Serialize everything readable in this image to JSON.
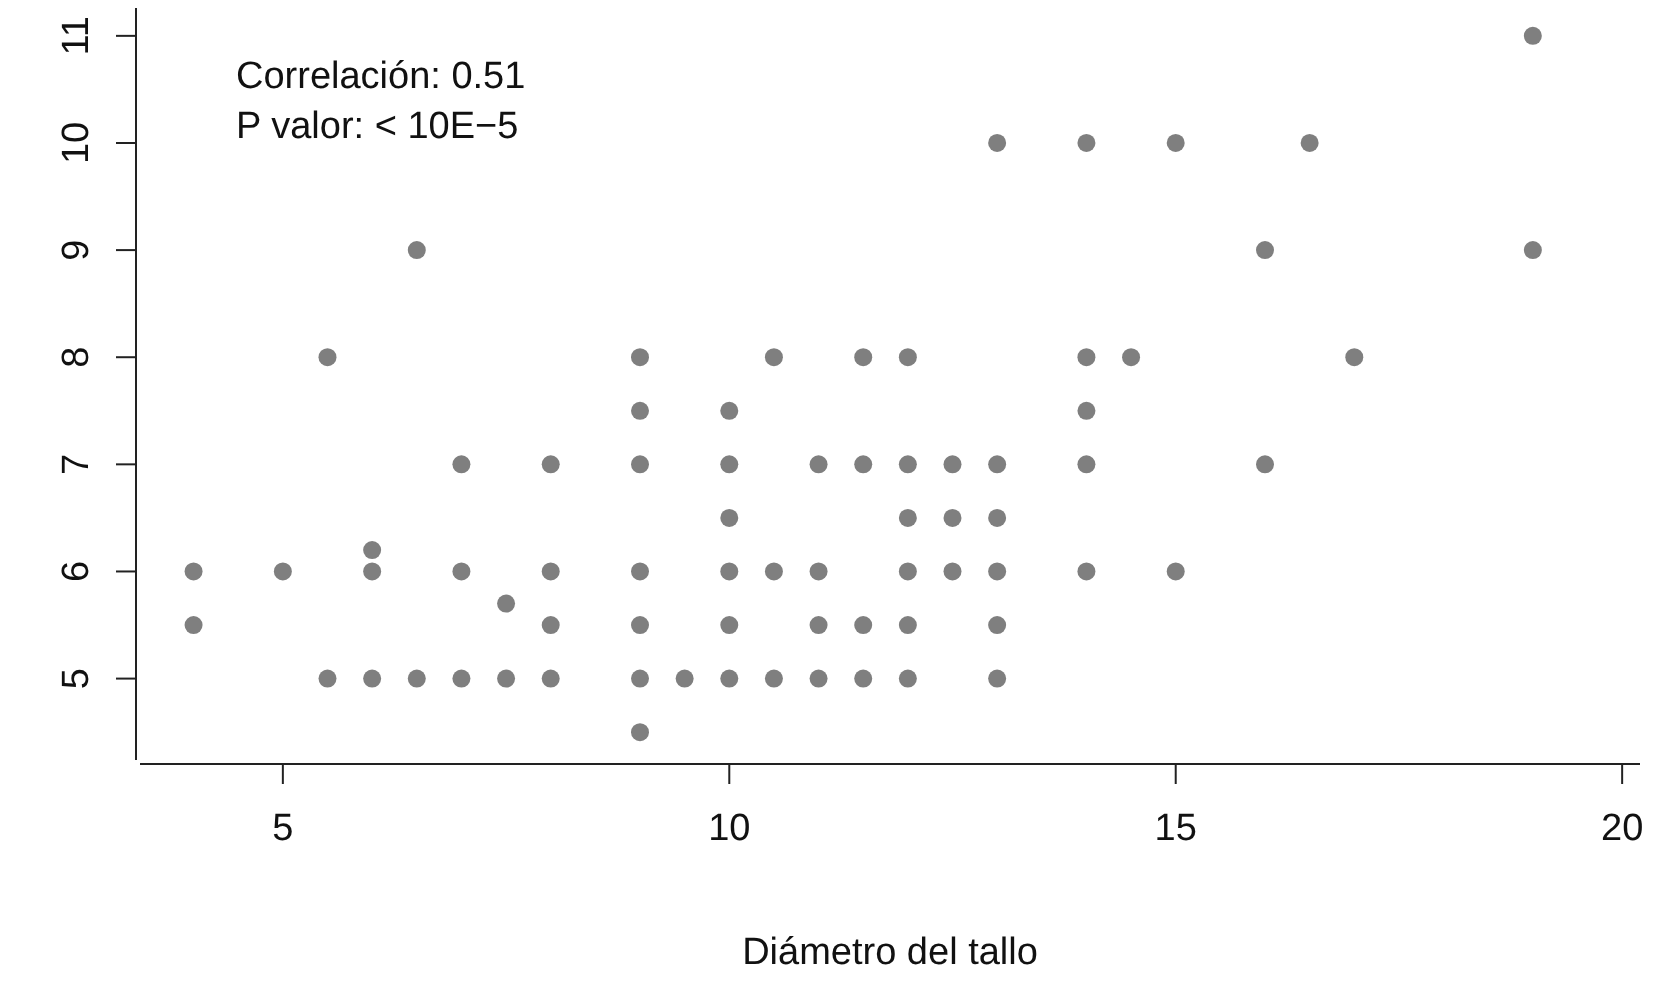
{
  "chart_data": {
    "type": "scatter",
    "xlabel": "Diámetro del tallo",
    "annotations": [
      "Correlación:  0.51",
      "P valor: < 10E−5"
    ],
    "xlim": [
      3.4,
      20.2
    ],
    "xticks": [
      5,
      10,
      15,
      20
    ],
    "ylim": [
      4.24,
      11.26
    ],
    "yticks": [
      5,
      6,
      7,
      8,
      9,
      10,
      11
    ],
    "grid": false,
    "marker": "circle",
    "series": [
      {
        "color": "#7f7f7f",
        "x": [
          4,
          4,
          5,
          5.5,
          5.5,
          6,
          6,
          6,
          6.5,
          6.5,
          7,
          7,
          7,
          7.5,
          7.5,
          8,
          8,
          8,
          8,
          9,
          9,
          9,
          9,
          9,
          9,
          9,
          9.5,
          10,
          10,
          10,
          10,
          10,
          10,
          10.5,
          10.5,
          10.5,
          11,
          11,
          11,
          11,
          11.5,
          11.5,
          11.5,
          11.5,
          12,
          12,
          12,
          12,
          12,
          12,
          12.5,
          12.5,
          12.5,
          13,
          13,
          13,
          13,
          13,
          13,
          14,
          14,
          14,
          14,
          14,
          14.5,
          15,
          15,
          16,
          16,
          16.5,
          17,
          19,
          19
        ],
        "values": [
          6,
          5.5,
          6,
          8,
          5,
          6.2,
          6,
          5,
          9,
          5,
          7,
          6,
          5,
          5.7,
          5,
          7,
          6,
          5.5,
          5,
          8,
          7.5,
          7,
          6,
          5.5,
          5,
          4.5,
          5,
          7.5,
          7,
          6.5,
          6,
          5.5,
          5,
          8,
          6,
          5,
          7,
          6,
          5.5,
          5,
          8,
          7,
          5.5,
          5,
          8,
          7,
          6.5,
          6,
          5.5,
          5,
          7,
          6.5,
          6,
          10,
          7,
          6.5,
          6,
          5.5,
          5,
          10,
          8,
          7.5,
          7,
          6,
          8,
          10,
          6,
          9,
          7,
          10,
          8,
          11,
          9
        ]
      }
    ]
  }
}
